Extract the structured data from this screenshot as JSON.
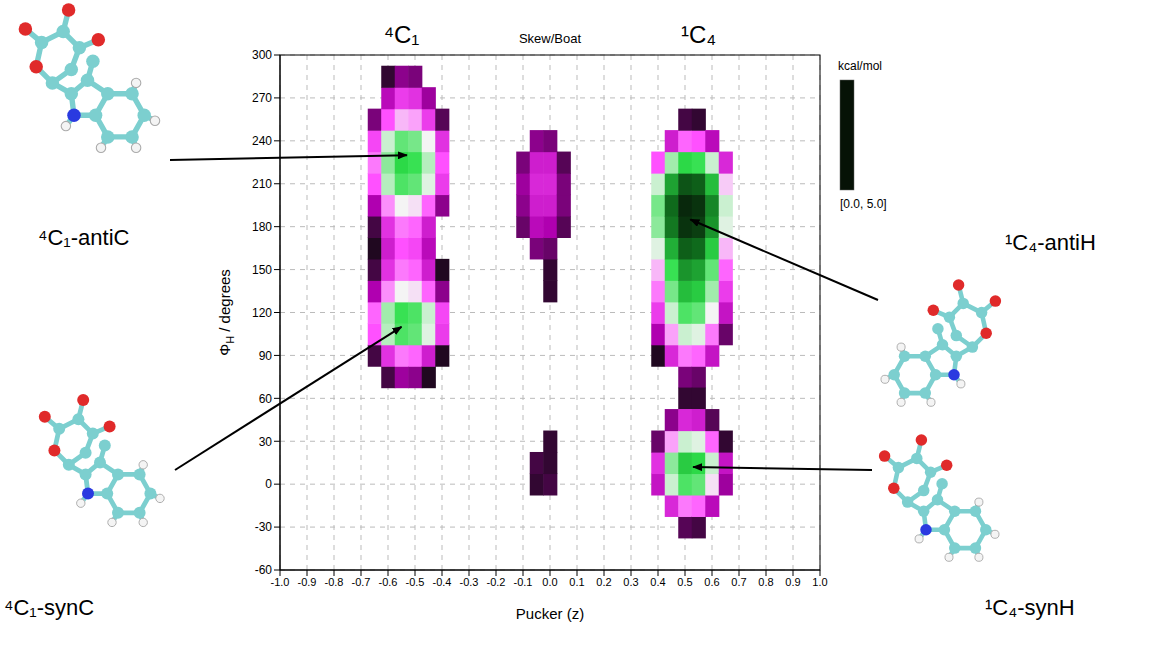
{
  "chart_data": {
    "type": "heatmap",
    "xlabel": "Pucker (z)",
    "ylabel": {
      "main": "Φ",
      "sub": "H",
      "rest": " / degrees"
    },
    "xlim": [
      -1,
      1
    ],
    "xticks": [
      {
        "value": -1,
        "label": "-1.0"
      },
      -0.9,
      -0.8,
      -0.7,
      -0.6,
      -0.5,
      -0.4,
      -0.3,
      -0.2,
      -0.1,
      {
        "value": 0,
        "label": "0.0"
      },
      0.1,
      0.2,
      0.3,
      0.4,
      0.5,
      0.6,
      0.7,
      0.8,
      0.9,
      {
        "value": 1,
        "label": "1.0"
      }
    ],
    "ylim": [
      -60,
      300
    ],
    "yticks": [
      -60,
      -30,
      0,
      30,
      60,
      90,
      120,
      150,
      180,
      210,
      240,
      270,
      300
    ],
    "grid": true,
    "colorbar_title": "kcal/mol",
    "colorbar_range": [
      0,
      5
    ],
    "colorbar_label": "[0.0, 5.0]",
    "cell_width": 0.05,
    "cell_height": 15,
    "cells": [
      [
        -0.65,
        90,
        4.8
      ],
      [
        -0.65,
        105,
        3.4
      ],
      [
        -0.65,
        120,
        3.3
      ],
      [
        -0.65,
        135,
        4.2
      ],
      [
        -0.65,
        150,
        4.8
      ],
      [
        -0.65,
        165,
        5.0
      ],
      [
        -0.65,
        180,
        4.8
      ],
      [
        -0.65,
        195,
        4.2
      ],
      [
        -0.65,
        210,
        3.4
      ],
      [
        -0.65,
        225,
        3.2
      ],
      [
        -0.65,
        240,
        3.5
      ],
      [
        -0.65,
        255,
        4.5
      ],
      [
        -0.6,
        75,
        4.8
      ],
      [
        -0.6,
        90,
        3.7
      ],
      [
        -0.6,
        105,
        2.3
      ],
      [
        -0.6,
        120,
        2.2
      ],
      [
        -0.6,
        135,
        3.1
      ],
      [
        -0.6,
        150,
        3.7
      ],
      [
        -0.6,
        165,
        3.9
      ],
      [
        -0.6,
        180,
        3.7
      ],
      [
        -0.6,
        195,
        3.1
      ],
      [
        -0.6,
        210,
        2.3
      ],
      [
        -0.6,
        225,
        2.1
      ],
      [
        -0.6,
        240,
        2.4
      ],
      [
        -0.6,
        255,
        3.4
      ],
      [
        -0.6,
        270,
        4.1
      ],
      [
        -0.6,
        285,
        4.9
      ],
      [
        -0.55,
        75,
        4.3
      ],
      [
        -0.55,
        90,
        3.2
      ],
      [
        -0.55,
        105,
        1.8
      ],
      [
        -0.55,
        120,
        1.7
      ],
      [
        -0.55,
        135,
        2.6
      ],
      [
        -0.55,
        150,
        3.2
      ],
      [
        -0.55,
        165,
        3.4
      ],
      [
        -0.55,
        180,
        3.2
      ],
      [
        -0.55,
        195,
        2.6
      ],
      [
        -0.55,
        210,
        1.8
      ],
      [
        -0.55,
        225,
        1.6
      ],
      [
        -0.55,
        240,
        1.9
      ],
      [
        -0.55,
        255,
        2.9
      ],
      [
        -0.55,
        270,
        3.6
      ],
      [
        -0.55,
        285,
        4.4
      ],
      [
        -0.5,
        75,
        4.4
      ],
      [
        -0.5,
        90,
        3.3
      ],
      [
        -0.5,
        105,
        1.9
      ],
      [
        -0.5,
        120,
        1.8
      ],
      [
        -0.5,
        135,
        2.7
      ],
      [
        -0.5,
        150,
        3.3
      ],
      [
        -0.5,
        165,
        3.5
      ],
      [
        -0.5,
        180,
        3.3
      ],
      [
        -0.5,
        195,
        2.7
      ],
      [
        -0.5,
        210,
        1.9
      ],
      [
        -0.5,
        225,
        1.7
      ],
      [
        -0.5,
        240,
        2.0
      ],
      [
        -0.5,
        255,
        3.0
      ],
      [
        -0.5,
        270,
        3.7
      ],
      [
        -0.5,
        285,
        4.5
      ],
      [
        -0.45,
        75,
        5.0
      ],
      [
        -0.45,
        90,
        3.9
      ],
      [
        -0.45,
        105,
        2.5
      ],
      [
        -0.45,
        120,
        2.4
      ],
      [
        -0.45,
        135,
        3.3
      ],
      [
        -0.45,
        150,
        3.9
      ],
      [
        -0.45,
        165,
        4.1
      ],
      [
        -0.45,
        180,
        3.9
      ],
      [
        -0.45,
        195,
        3.3
      ],
      [
        -0.45,
        210,
        2.5
      ],
      [
        -0.45,
        225,
        2.3
      ],
      [
        -0.45,
        240,
        2.6
      ],
      [
        -0.45,
        255,
        3.6
      ],
      [
        -0.45,
        270,
        4.3
      ],
      [
        -0.4,
        90,
        5.0
      ],
      [
        -0.4,
        105,
        3.6
      ],
      [
        -0.4,
        120,
        3.5
      ],
      [
        -0.4,
        135,
        4.4
      ],
      [
        -0.4,
        150,
        5.0
      ],
      [
        -0.4,
        195,
        4.4
      ],
      [
        -0.4,
        210,
        3.6
      ],
      [
        -0.4,
        225,
        3.4
      ],
      [
        -0.4,
        240,
        3.7
      ],
      [
        -0.4,
        255,
        4.7
      ],
      [
        0.4,
        90,
        5.0
      ],
      [
        0.4,
        105,
        4.2
      ],
      [
        0.4,
        120,
        3.6
      ],
      [
        0.4,
        135,
        3.2
      ],
      [
        0.4,
        150,
        2.9
      ],
      [
        0.4,
        165,
        2.5
      ],
      [
        0.4,
        180,
        2.1
      ],
      [
        0.4,
        195,
        2.0
      ],
      [
        0.4,
        210,
        2.4
      ],
      [
        0.4,
        225,
        3.4
      ],
      [
        0.45,
        90,
        3.8
      ],
      [
        0.45,
        105,
        3.0
      ],
      [
        0.45,
        120,
        2.4
      ],
      [
        0.45,
        135,
        2.0
      ],
      [
        0.45,
        150,
        1.7
      ],
      [
        0.45,
        165,
        1.3
      ],
      [
        0.45,
        180,
        0.9
      ],
      [
        0.45,
        195,
        0.8
      ],
      [
        0.45,
        210,
        1.2
      ],
      [
        0.45,
        225,
        2.2
      ],
      [
        0.45,
        240,
        3.9
      ],
      [
        0.5,
        75,
        4.5
      ],
      [
        0.5,
        90,
        3.2
      ],
      [
        0.5,
        105,
        2.4
      ],
      [
        0.5,
        120,
        1.8
      ],
      [
        0.5,
        135,
        1.4
      ],
      [
        0.5,
        150,
        1.1
      ],
      [
        0.5,
        165,
        0.7
      ],
      [
        0.5,
        180,
        0.3
      ],
      [
        0.5,
        195,
        0.2
      ],
      [
        0.5,
        210,
        0.6
      ],
      [
        0.5,
        225,
        1.6
      ],
      [
        0.5,
        240,
        3.3
      ],
      [
        0.5,
        255,
        4.8
      ],
      [
        0.55,
        75,
        4.6
      ],
      [
        0.55,
        90,
        3.3
      ],
      [
        0.55,
        105,
        2.5
      ],
      [
        0.55,
        120,
        1.9
      ],
      [
        0.55,
        135,
        1.5
      ],
      [
        0.55,
        150,
        1.2
      ],
      [
        0.55,
        165,
        0.8
      ],
      [
        0.55,
        180,
        0.4
      ],
      [
        0.55,
        195,
        0.3
      ],
      [
        0.55,
        210,
        0.7
      ],
      [
        0.55,
        225,
        1.7
      ],
      [
        0.55,
        240,
        3.4
      ],
      [
        0.55,
        255,
        4.9
      ],
      [
        0.6,
        90,
        4.0
      ],
      [
        0.6,
        105,
        3.2
      ],
      [
        0.6,
        120,
        2.6
      ],
      [
        0.6,
        135,
        2.2
      ],
      [
        0.6,
        150,
        1.9
      ],
      [
        0.6,
        165,
        1.5
      ],
      [
        0.6,
        180,
        1.1
      ],
      [
        0.6,
        195,
        1.0
      ],
      [
        0.6,
        210,
        1.4
      ],
      [
        0.6,
        225,
        2.4
      ],
      [
        0.6,
        240,
        4.1
      ],
      [
        0.65,
        105,
        4.6
      ],
      [
        0.65,
        120,
        4.0
      ],
      [
        0.65,
        135,
        3.6
      ],
      [
        0.65,
        150,
        3.3
      ],
      [
        0.65,
        165,
        2.9
      ],
      [
        0.65,
        180,
        2.5
      ],
      [
        0.65,
        195,
        2.4
      ],
      [
        0.65,
        210,
        2.8
      ],
      [
        0.65,
        225,
        3.8
      ],
      [
        0.5,
        60,
        4.9
      ],
      [
        0.55,
        60,
        4.9
      ],
      [
        0.4,
        0,
        4.0
      ],
      [
        0.4,
        15,
        3.7
      ],
      [
        0.4,
        30,
        4.6
      ],
      [
        0.45,
        -15,
        3.8
      ],
      [
        0.45,
        0,
        2.4
      ],
      [
        0.45,
        15,
        2.1
      ],
      [
        0.45,
        30,
        3.0
      ],
      [
        0.45,
        45,
        4.4
      ],
      [
        0.5,
        -30,
        4.7
      ],
      [
        0.5,
        -15,
        3.2
      ],
      [
        0.5,
        0,
        1.8
      ],
      [
        0.5,
        15,
        1.5
      ],
      [
        0.5,
        30,
        2.4
      ],
      [
        0.5,
        45,
        3.8
      ],
      [
        0.55,
        -30,
        4.8
      ],
      [
        0.55,
        -15,
        3.3
      ],
      [
        0.55,
        0,
        1.9
      ],
      [
        0.55,
        15,
        1.6
      ],
      [
        0.55,
        30,
        2.5
      ],
      [
        0.55,
        45,
        3.9
      ],
      [
        0.6,
        -15,
        4.1
      ],
      [
        0.6,
        0,
        2.7
      ],
      [
        0.6,
        15,
        2.4
      ],
      [
        0.6,
        30,
        3.3
      ],
      [
        0.6,
        45,
        4.7
      ],
      [
        0.65,
        0,
        4.3
      ],
      [
        0.65,
        15,
        4.0
      ],
      [
        0.65,
        30,
        4.9
      ],
      [
        -0.1,
        180,
        4.6
      ],
      [
        -0.1,
        195,
        4.4
      ],
      [
        -0.1,
        210,
        4.3
      ],
      [
        -0.1,
        225,
        4.5
      ],
      [
        -0.05,
        165,
        4.5
      ],
      [
        -0.05,
        180,
        4.1
      ],
      [
        -0.05,
        195,
        3.9
      ],
      [
        -0.05,
        210,
        3.8
      ],
      [
        -0.05,
        225,
        3.9
      ],
      [
        -0.05,
        240,
        4.4
      ],
      [
        0,
        135,
        4.9
      ],
      [
        0,
        150,
        4.9
      ],
      [
        0,
        165,
        4.6
      ],
      [
        0,
        180,
        4.2
      ],
      [
        0,
        195,
        3.9
      ],
      [
        0,
        210,
        3.8
      ],
      [
        0,
        225,
        3.9
      ],
      [
        0,
        240,
        4.5
      ],
      [
        0.05,
        180,
        4.7
      ],
      [
        0.05,
        195,
        4.5
      ],
      [
        0.05,
        210,
        4.5
      ],
      [
        0.05,
        225,
        4.7
      ],
      [
        -0.05,
        0,
        4.9
      ],
      [
        -0.05,
        15,
        4.8
      ],
      [
        0,
        0,
        4.8
      ],
      [
        0,
        15,
        4.9
      ],
      [
        0,
        30,
        4.9
      ]
    ],
    "region_labels": [
      {
        "text": "⁴C₁",
        "x": -0.55
      },
      {
        "text": "Skew/Boat",
        "x": 0
      },
      {
        "text": "¹C₄",
        "x": 0.55
      }
    ],
    "annotations": [
      {
        "text": "⁴C₁-antiC",
        "x": -0.53,
        "y": 230
      },
      {
        "text": "⁴C₁-synC",
        "x": -0.55,
        "y": 110
      },
      {
        "text": "¹C₄-antiH",
        "x": 0.52,
        "y": 185
      },
      {
        "text": "¹C₄-synH",
        "x": 0.53,
        "y": 12
      }
    ]
  }
}
